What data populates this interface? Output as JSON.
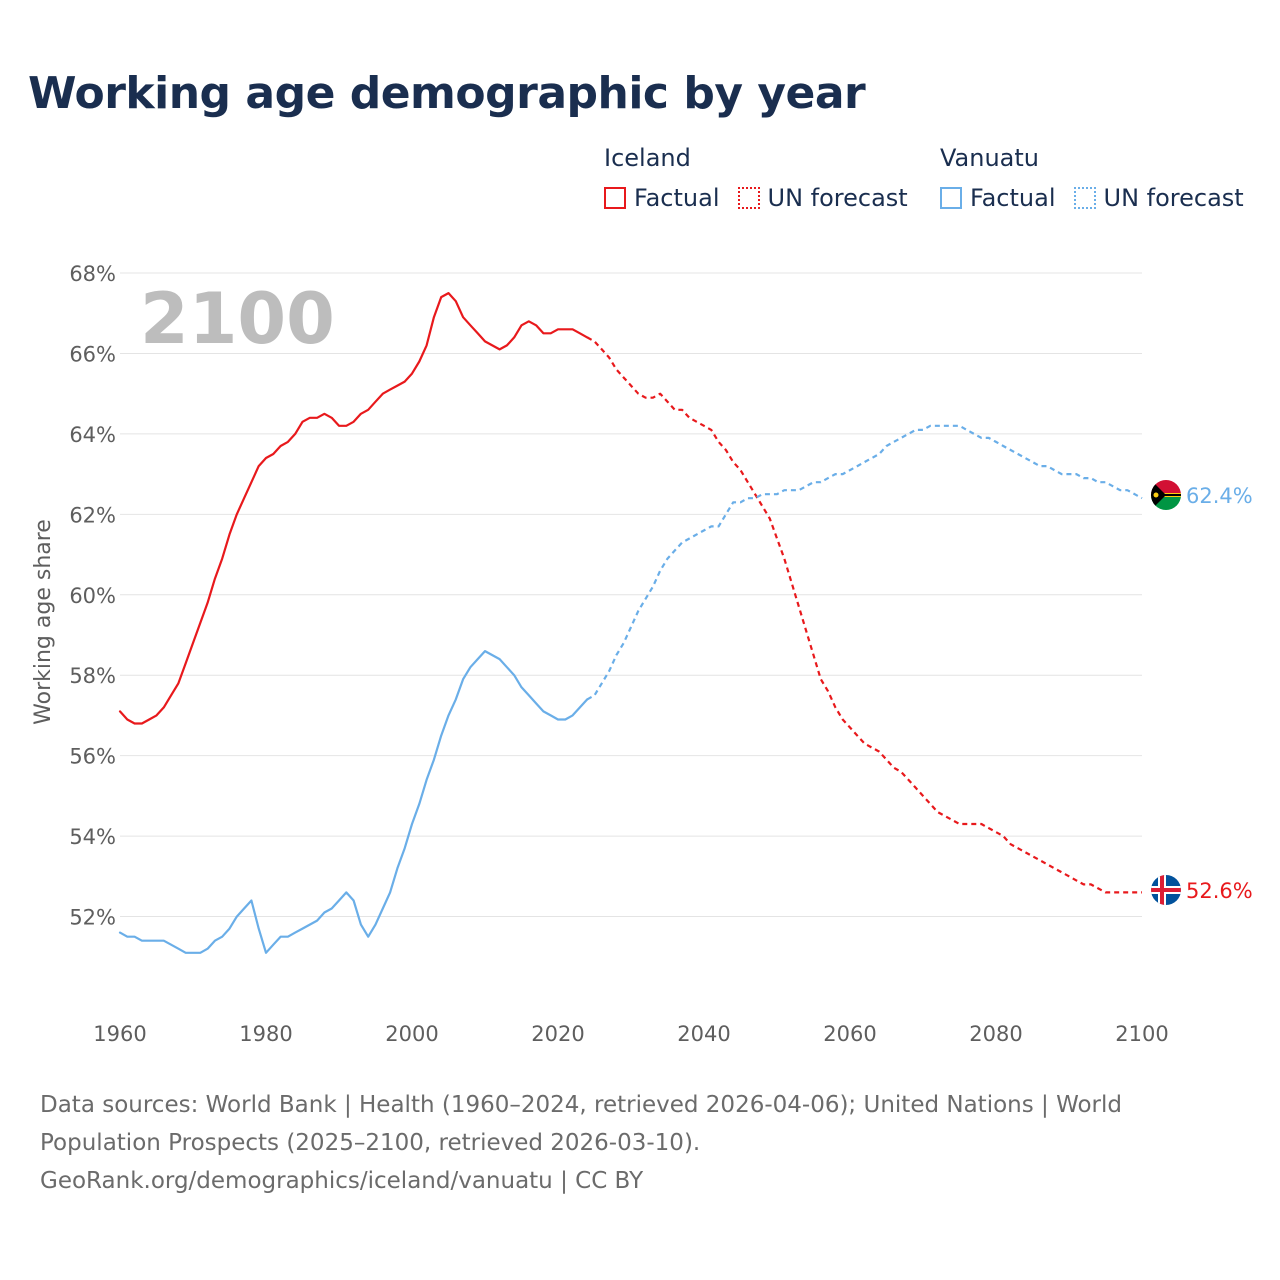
{
  "title": "Working age demographic by year",
  "legend": {
    "groups": [
      {
        "name": "Iceland",
        "color": "#e8191c",
        "items": [
          {
            "label": "Factual",
            "style": "solid"
          },
          {
            "label": "UN forecast",
            "style": "dotted"
          }
        ]
      },
      {
        "name": "Vanuatu",
        "color": "#6aaee8",
        "items": [
          {
            "label": "Factual",
            "style": "solid"
          },
          {
            "label": "UN forecast",
            "style": "dotted"
          }
        ]
      }
    ]
  },
  "current_year_label": "2100",
  "footer": {
    "sources": "Data sources: World Bank | Health (1960–2024, retrieved 2026-04-06); United Nations | World Population Prospects (2025–2100, retrieved 2026-03-10).",
    "link": "GeoRank.org/demographics/iceland/vanuatu | CC BY"
  },
  "chart_data": {
    "type": "line",
    "title": "Working age demographic by year",
    "xlabel": "",
    "ylabel": "Working age share",
    "xlim": [
      1960,
      2100
    ],
    "ylim": [
      50,
      68
    ],
    "x_ticks": [
      1960,
      1980,
      2000,
      2020,
      2040,
      2060,
      2080,
      2100
    ],
    "y_ticks": [
      52,
      54,
      56,
      58,
      60,
      62,
      64,
      66,
      68
    ],
    "y_tick_suffix": "%",
    "factual_end_year": 2024,
    "series": [
      {
        "name": "Iceland",
        "color": "#e8191c",
        "end_label": "52.6%",
        "points": [
          [
            1960,
            57.1
          ],
          [
            1961,
            56.9
          ],
          [
            1962,
            56.8
          ],
          [
            1963,
            56.8
          ],
          [
            1964,
            56.9
          ],
          [
            1965,
            57.0
          ],
          [
            1966,
            57.2
          ],
          [
            1967,
            57.5
          ],
          [
            1968,
            57.8
          ],
          [
            1969,
            58.3
          ],
          [
            1970,
            58.8
          ],
          [
            1971,
            59.3
          ],
          [
            1972,
            59.8
          ],
          [
            1973,
            60.4
          ],
          [
            1974,
            60.9
          ],
          [
            1975,
            61.5
          ],
          [
            1976,
            62.0
          ],
          [
            1977,
            62.4
          ],
          [
            1978,
            62.8
          ],
          [
            1979,
            63.2
          ],
          [
            1980,
            63.4
          ],
          [
            1981,
            63.5
          ],
          [
            1982,
            63.7
          ],
          [
            1983,
            63.8
          ],
          [
            1984,
            64.0
          ],
          [
            1985,
            64.3
          ],
          [
            1986,
            64.4
          ],
          [
            1987,
            64.4
          ],
          [
            1988,
            64.5
          ],
          [
            1989,
            64.4
          ],
          [
            1990,
            64.2
          ],
          [
            1991,
            64.2
          ],
          [
            1992,
            64.3
          ],
          [
            1993,
            64.5
          ],
          [
            1994,
            64.6
          ],
          [
            1995,
            64.8
          ],
          [
            1996,
            65.0
          ],
          [
            1997,
            65.1
          ],
          [
            1998,
            65.2
          ],
          [
            1999,
            65.3
          ],
          [
            2000,
            65.5
          ],
          [
            2001,
            65.8
          ],
          [
            2002,
            66.2
          ],
          [
            2003,
            66.9
          ],
          [
            2004,
            67.4
          ],
          [
            2005,
            67.5
          ],
          [
            2006,
            67.3
          ],
          [
            2007,
            66.9
          ],
          [
            2008,
            66.7
          ],
          [
            2009,
            66.5
          ],
          [
            2010,
            66.3
          ],
          [
            2011,
            66.2
          ],
          [
            2012,
            66.1
          ],
          [
            2013,
            66.2
          ],
          [
            2014,
            66.4
          ],
          [
            2015,
            66.7
          ],
          [
            2016,
            66.8
          ],
          [
            2017,
            66.7
          ],
          [
            2018,
            66.5
          ],
          [
            2019,
            66.5
          ],
          [
            2020,
            66.6
          ],
          [
            2021,
            66.6
          ],
          [
            2022,
            66.6
          ],
          [
            2023,
            66.5
          ],
          [
            2024,
            66.4
          ],
          [
            2025,
            66.3
          ],
          [
            2026,
            66.1
          ],
          [
            2027,
            65.9
          ],
          [
            2028,
            65.6
          ],
          [
            2029,
            65.4
          ],
          [
            2030,
            65.2
          ],
          [
            2031,
            65.0
          ],
          [
            2032,
            64.9
          ],
          [
            2033,
            64.9
          ],
          [
            2034,
            65.0
          ],
          [
            2035,
            64.8
          ],
          [
            2036,
            64.6
          ],
          [
            2037,
            64.6
          ],
          [
            2038,
            64.4
          ],
          [
            2039,
            64.3
          ],
          [
            2040,
            64.2
          ],
          [
            2041,
            64.1
          ],
          [
            2042,
            63.8
          ],
          [
            2043,
            63.6
          ],
          [
            2044,
            63.3
          ],
          [
            2045,
            63.1
          ],
          [
            2046,
            62.8
          ],
          [
            2047,
            62.5
          ],
          [
            2048,
            62.2
          ],
          [
            2049,
            61.9
          ],
          [
            2050,
            61.4
          ],
          [
            2051,
            60.9
          ],
          [
            2052,
            60.3
          ],
          [
            2053,
            59.7
          ],
          [
            2054,
            59.1
          ],
          [
            2055,
            58.5
          ],
          [
            2056,
            57.9
          ],
          [
            2057,
            57.6
          ],
          [
            2058,
            57.2
          ],
          [
            2059,
            56.9
          ],
          [
            2060,
            56.7
          ],
          [
            2061,
            56.5
          ],
          [
            2062,
            56.3
          ],
          [
            2063,
            56.2
          ],
          [
            2064,
            56.1
          ],
          [
            2065,
            55.9
          ],
          [
            2066,
            55.7
          ],
          [
            2067,
            55.6
          ],
          [
            2068,
            55.4
          ],
          [
            2069,
            55.2
          ],
          [
            2070,
            55.0
          ],
          [
            2071,
            54.8
          ],
          [
            2072,
            54.6
          ],
          [
            2073,
            54.5
          ],
          [
            2074,
            54.4
          ],
          [
            2075,
            54.3
          ],
          [
            2076,
            54.3
          ],
          [
            2077,
            54.3
          ],
          [
            2078,
            54.3
          ],
          [
            2079,
            54.2
          ],
          [
            2080,
            54.1
          ],
          [
            2081,
            54.0
          ],
          [
            2082,
            53.8
          ],
          [
            2083,
            53.7
          ],
          [
            2084,
            53.6
          ],
          [
            2085,
            53.5
          ],
          [
            2086,
            53.4
          ],
          [
            2087,
            53.3
          ],
          [
            2088,
            53.2
          ],
          [
            2089,
            53.1
          ],
          [
            2090,
            53.0
          ],
          [
            2091,
            52.9
          ],
          [
            2092,
            52.8
          ],
          [
            2093,
            52.8
          ],
          [
            2094,
            52.7
          ],
          [
            2095,
            52.6
          ],
          [
            2096,
            52.6
          ],
          [
            2097,
            52.6
          ],
          [
            2098,
            52.6
          ],
          [
            2099,
            52.6
          ],
          [
            2100,
            52.6
          ]
        ]
      },
      {
        "name": "Vanuatu",
        "color": "#6aaee8",
        "end_label": "62.4%",
        "points": [
          [
            1960,
            51.6
          ],
          [
            1961,
            51.5
          ],
          [
            1962,
            51.5
          ],
          [
            1963,
            51.4
          ],
          [
            1964,
            51.4
          ],
          [
            1965,
            51.4
          ],
          [
            1966,
            51.4
          ],
          [
            1967,
            51.3
          ],
          [
            1968,
            51.2
          ],
          [
            1969,
            51.1
          ],
          [
            1970,
            51.1
          ],
          [
            1971,
            51.1
          ],
          [
            1972,
            51.2
          ],
          [
            1973,
            51.4
          ],
          [
            1974,
            51.5
          ],
          [
            1975,
            51.7
          ],
          [
            1976,
            52.0
          ],
          [
            1977,
            52.2
          ],
          [
            1978,
            52.4
          ],
          [
            1979,
            51.7
          ],
          [
            1980,
            51.1
          ],
          [
            1981,
            51.3
          ],
          [
            1982,
            51.5
          ],
          [
            1983,
            51.5
          ],
          [
            1984,
            51.6
          ],
          [
            1985,
            51.7
          ],
          [
            1986,
            51.8
          ],
          [
            1987,
            51.9
          ],
          [
            1988,
            52.1
          ],
          [
            1989,
            52.2
          ],
          [
            1990,
            52.4
          ],
          [
            1991,
            52.6
          ],
          [
            1992,
            52.4
          ],
          [
            1993,
            51.8
          ],
          [
            1994,
            51.5
          ],
          [
            1995,
            51.8
          ],
          [
            1996,
            52.2
          ],
          [
            1997,
            52.6
          ],
          [
            1998,
            53.2
          ],
          [
            1999,
            53.7
          ],
          [
            2000,
            54.3
          ],
          [
            2001,
            54.8
          ],
          [
            2002,
            55.4
          ],
          [
            2003,
            55.9
          ],
          [
            2004,
            56.5
          ],
          [
            2005,
            57.0
          ],
          [
            2006,
            57.4
          ],
          [
            2007,
            57.9
          ],
          [
            2008,
            58.2
          ],
          [
            2009,
            58.4
          ],
          [
            2010,
            58.6
          ],
          [
            2011,
            58.5
          ],
          [
            2012,
            58.4
          ],
          [
            2013,
            58.2
          ],
          [
            2014,
            58.0
          ],
          [
            2015,
            57.7
          ],
          [
            2016,
            57.5
          ],
          [
            2017,
            57.3
          ],
          [
            2018,
            57.1
          ],
          [
            2019,
            57.0
          ],
          [
            2020,
            56.9
          ],
          [
            2021,
            56.9
          ],
          [
            2022,
            57.0
          ],
          [
            2023,
            57.2
          ],
          [
            2024,
            57.4
          ],
          [
            2025,
            57.5
          ],
          [
            2026,
            57.8
          ],
          [
            2027,
            58.1
          ],
          [
            2028,
            58.5
          ],
          [
            2029,
            58.8
          ],
          [
            2030,
            59.2
          ],
          [
            2031,
            59.6
          ],
          [
            2032,
            59.9
          ],
          [
            2033,
            60.2
          ],
          [
            2034,
            60.6
          ],
          [
            2035,
            60.9
          ],
          [
            2036,
            61.1
          ],
          [
            2037,
            61.3
          ],
          [
            2038,
            61.4
          ],
          [
            2039,
            61.5
          ],
          [
            2040,
            61.6
          ],
          [
            2041,
            61.7
          ],
          [
            2042,
            61.7
          ],
          [
            2043,
            62.0
          ],
          [
            2044,
            62.3
          ],
          [
            2045,
            62.3
          ],
          [
            2046,
            62.4
          ],
          [
            2047,
            62.4
          ],
          [
            2048,
            62.5
          ],
          [
            2049,
            62.5
          ],
          [
            2050,
            62.5
          ],
          [
            2051,
            62.6
          ],
          [
            2052,
            62.6
          ],
          [
            2053,
            62.6
          ],
          [
            2054,
            62.7
          ],
          [
            2055,
            62.8
          ],
          [
            2056,
            62.8
          ],
          [
            2057,
            62.9
          ],
          [
            2058,
            63.0
          ],
          [
            2059,
            63.0
          ],
          [
            2060,
            63.1
          ],
          [
            2061,
            63.2
          ],
          [
            2062,
            63.3
          ],
          [
            2063,
            63.4
          ],
          [
            2064,
            63.5
          ],
          [
            2065,
            63.7
          ],
          [
            2066,
            63.8
          ],
          [
            2067,
            63.9
          ],
          [
            2068,
            64.0
          ],
          [
            2069,
            64.1
          ],
          [
            2070,
            64.1
          ],
          [
            2071,
            64.2
          ],
          [
            2072,
            64.2
          ],
          [
            2073,
            64.2
          ],
          [
            2074,
            64.2
          ],
          [
            2075,
            64.2
          ],
          [
            2076,
            64.1
          ],
          [
            2077,
            64.0
          ],
          [
            2078,
            63.9
          ],
          [
            2079,
            63.9
          ],
          [
            2080,
            63.8
          ],
          [
            2081,
            63.7
          ],
          [
            2082,
            63.6
          ],
          [
            2083,
            63.5
          ],
          [
            2084,
            63.4
          ],
          [
            2085,
            63.3
          ],
          [
            2086,
            63.2
          ],
          [
            2087,
            63.2
          ],
          [
            2088,
            63.1
          ],
          [
            2089,
            63.0
          ],
          [
            2090,
            63.0
          ],
          [
            2091,
            63.0
          ],
          [
            2092,
            62.9
          ],
          [
            2093,
            62.9
          ],
          [
            2094,
            62.8
          ],
          [
            2095,
            62.8
          ],
          [
            2096,
            62.7
          ],
          [
            2097,
            62.6
          ],
          [
            2098,
            62.6
          ],
          [
            2099,
            62.5
          ],
          [
            2100,
            62.4
          ]
        ]
      }
    ]
  }
}
